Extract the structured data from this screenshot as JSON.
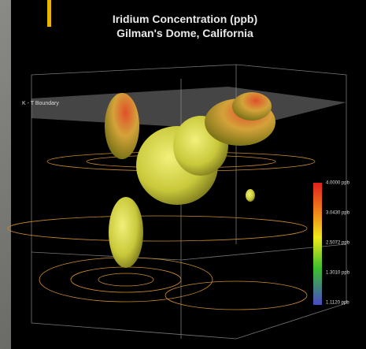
{
  "title": "Iridium Concentration (ppb)",
  "subtitle": "Gilman's Dome, California",
  "annotation": "K - T Boundary",
  "colorbar": {
    "labels": [
      "4.0000 ppb",
      "3.0430 ppb",
      "2.5072 ppb",
      "1.3010 ppb",
      "1.1120 ppb"
    ]
  }
}
